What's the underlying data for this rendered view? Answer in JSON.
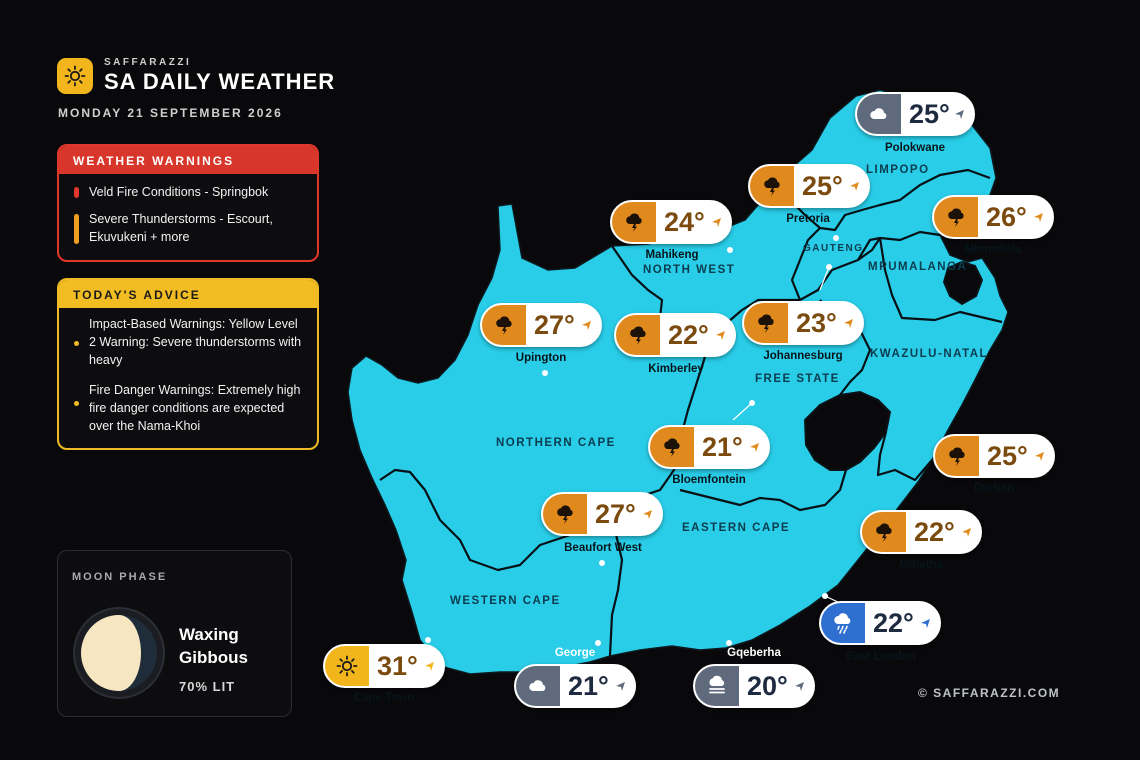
{
  "brand": {
    "small": "SAFFARAZZI",
    "title": "SA DAILY WEATHER"
  },
  "date": "MONDAY 21 SEPTEMBER 2026",
  "warnings": {
    "title": "WEATHER WARNINGS",
    "items": [
      {
        "text": "Veld Fire Conditions - Springbok",
        "color": "#e0372c"
      },
      {
        "text": "Severe Thunderstorms - Escourt, Ekuvukeni + more",
        "color": "#f0a020"
      }
    ]
  },
  "advice": {
    "title": "TODAY'S ADVICE",
    "items": [
      {
        "text": "Impact-Based Warnings: Yellow Level 2 Warning: Severe thunderstorms with heavy"
      },
      {
        "text": "Fire Danger Warnings: Extremely high fire danger conditions are expected over the Nama-Khoi"
      }
    ]
  },
  "moon": {
    "title": "MOON PHASE",
    "phase": "Waxing Gibbous",
    "lit_label": "70% LIT",
    "lit_fraction": 0.7
  },
  "copyright": "© SAFFARAZZI.COM",
  "colors": {
    "map": "#29cde8",
    "storm": "#e08a1e",
    "sunny": "#f2b51b",
    "cloudy": "#5f6b7c",
    "rain": "#2f6fd0",
    "temp_warm": "#7a4a0e",
    "temp_cool": "#1d2a3f"
  },
  "provinces": [
    "LIMPOPO",
    "GAUTENG",
    "MPUMALANGA",
    "NORTH WEST",
    "FREE STATE",
    "KWAZULU-NATAL",
    "NORTHERN CAPE",
    "EASTERN CAPE",
    "WESTERN CAPE"
  ],
  "cities": [
    {
      "name": "Polokwane",
      "temp": "25°",
      "icon": "cloud-icon",
      "condition": "cloudy"
    },
    {
      "name": "Pretoria",
      "temp": "25°",
      "icon": "thunderstorm-icon",
      "condition": "storm"
    },
    {
      "name": "Mbombela",
      "temp": "26°",
      "icon": "thunderstorm-icon",
      "condition": "storm"
    },
    {
      "name": "Mahikeng",
      "temp": "24°",
      "icon": "thunderstorm-icon",
      "condition": "storm"
    },
    {
      "name": "Upington",
      "temp": "27°",
      "icon": "thunderstorm-icon",
      "condition": "storm"
    },
    {
      "name": "Kimberley",
      "temp": "22°",
      "icon": "thunderstorm-icon",
      "condition": "storm"
    },
    {
      "name": "Johannesburg",
      "temp": "23°",
      "icon": "thunderstorm-icon",
      "condition": "storm"
    },
    {
      "name": "Bloemfontein",
      "temp": "21°",
      "icon": "thunderstorm-icon",
      "condition": "storm"
    },
    {
      "name": "Durban",
      "temp": "25°",
      "icon": "thunderstorm-icon",
      "condition": "storm"
    },
    {
      "name": "Beaufort West",
      "temp": "27°",
      "icon": "thunderstorm-icon",
      "condition": "storm"
    },
    {
      "name": "Mthatha",
      "temp": "22°",
      "icon": "thunderstorm-icon",
      "condition": "storm"
    },
    {
      "name": "East London",
      "temp": "22°",
      "icon": "rain-cloud-icon",
      "condition": "rain"
    },
    {
      "name": "Cape Town",
      "temp": "31°",
      "icon": "sun-icon",
      "condition": "sunny"
    },
    {
      "name": "George",
      "temp": "21°",
      "icon": "cloud-icon",
      "condition": "cloudy"
    },
    {
      "name": "Gqeberha",
      "temp": "20°",
      "icon": "fog-icon",
      "condition": "cloudy"
    }
  ]
}
